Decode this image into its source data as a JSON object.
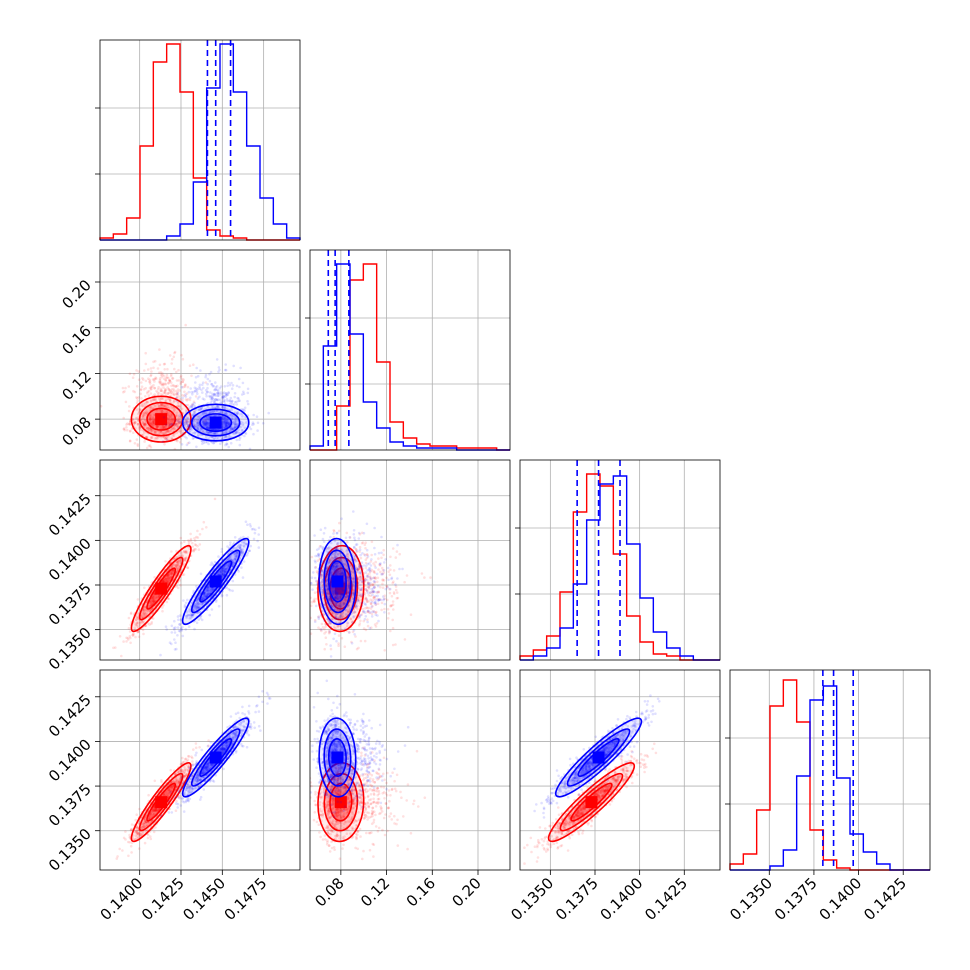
{
  "chart_data": {
    "type": "scatter",
    "subtype": "corner-plot",
    "grid": true,
    "colors": {
      "red": "#ff0000",
      "blue": "#0000ff"
    },
    "parameters": [
      {
        "ticks": [
          "0.1400",
          "0.1425",
          "0.1450",
          "0.1475"
        ],
        "tick_values": [
          0.14,
          0.1425,
          0.145,
          0.1475
        ],
        "range": [
          0.1376,
          0.1497
        ]
      },
      {
        "ticks": [
          "0.08",
          "0.12",
          "0.16",
          "0.20"
        ],
        "tick_values": [
          0.08,
          0.12,
          0.16,
          0.2
        ],
        "range": [
          0.053,
          0.228
        ]
      },
      {
        "ticks": [
          "0.1350",
          "0.1375",
          "0.1400",
          "0.1425"
        ],
        "tick_values": [
          0.135,
          0.1375,
          0.14,
          0.1425
        ],
        "range": [
          0.1333,
          0.1445
        ]
      },
      {
        "ticks": [
          "0.1350",
          "0.1375",
          "0.1400",
          "0.1425"
        ],
        "tick_values": [
          0.135,
          0.1375,
          0.14,
          0.1425
        ],
        "range": [
          0.1328,
          0.144
        ]
      }
    ],
    "series": [
      {
        "color": "red",
        "mean": [
          0.1413,
          0.08,
          0.1373,
          0.1366
        ],
        "sd": [
          0.0009,
          0.01,
          0.0012,
          0.0011
        ]
      },
      {
        "color": "blue",
        "mean": [
          0.1446,
          0.077,
          0.1377,
          0.1391
        ],
        "sd": [
          0.001,
          0.008,
          0.0012,
          0.0011
        ]
      }
    ],
    "correlations": {
      "0-2": [
        0.92,
        0.92
      ],
      "0-3": [
        0.92,
        0.92
      ],
      "2-3": [
        0.92,
        0.92
      ],
      "1-2": [
        0.05,
        -0.05
      ],
      "1-3": [
        0.05,
        -0.05
      ]
    },
    "histograms": [
      {
        "red": [
          0.01,
          0.03,
          0.11,
          0.47,
          0.89,
          0.98,
          0.74,
          0.31,
          0.05,
          0.02,
          0.01,
          0,
          0,
          0,
          0
        ],
        "blue": [
          0,
          0,
          0,
          0,
          0,
          0.02,
          0.08,
          0.29,
          0.76,
          0.98,
          0.74,
          0.47,
          0.21,
          0.08,
          0.01
        ],
        "quantile_lines": [
          0.1441,
          0.1446,
          0.1455
        ]
      },
      {
        "red": [
          0,
          0,
          0.22,
          0.85,
          0.93,
          0.44,
          0.14,
          0.06,
          0.03,
          0.02,
          0.02,
          0.01,
          0.01,
          0.01,
          0
        ],
        "blue": [
          0.02,
          0.52,
          0.93,
          0.58,
          0.24,
          0.11,
          0.04,
          0.02,
          0.01,
          0.01,
          0.01,
          0,
          0,
          0,
          0
        ],
        "quantile_lines": [
          0.069,
          0.075,
          0.087
        ]
      },
      {
        "red": [
          0.02,
          0.05,
          0.12,
          0.34,
          0.74,
          0.93,
          0.87,
          0.53,
          0.22,
          0.09,
          0.03,
          0.02,
          0,
          0,
          0
        ],
        "blue": [
          0,
          0.02,
          0.06,
          0.16,
          0.38,
          0.7,
          0.88,
          0.92,
          0.58,
          0.31,
          0.14,
          0.06,
          0.02,
          0,
          0
        ],
        "quantile_lines": [
          0.1365,
          0.1377,
          0.1389
        ]
      },
      {
        "red": [
          0.03,
          0.08,
          0.3,
          0.82,
          0.95,
          0.74,
          0.2,
          0.05,
          0.01,
          0,
          0,
          0,
          0,
          0,
          0
        ],
        "blue": [
          0,
          0,
          0,
          0.02,
          0.1,
          0.47,
          0.85,
          0.92,
          0.46,
          0.18,
          0.09,
          0.03,
          0,
          0,
          0
        ],
        "quantile_lines": [
          0.138,
          0.1386,
          0.1397
        ]
      }
    ]
  }
}
